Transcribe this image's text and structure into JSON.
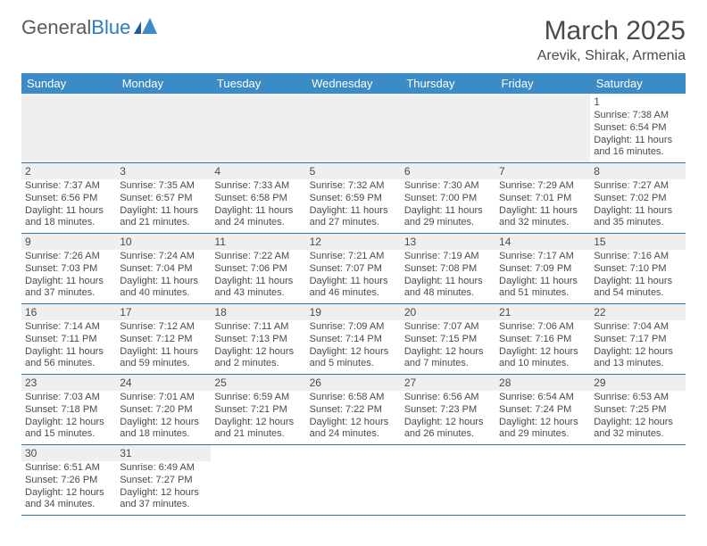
{
  "logo": {
    "text_general": "General",
    "text_blue": "Blue"
  },
  "title": "March 2025",
  "location": "Arevik, Shirak, Armenia",
  "colors": {
    "header_bg": "#3b8bc6",
    "header_text": "#ffffff",
    "row_divider": "#2f74aa",
    "blank_bg": "#efefef",
    "text": "#4a4a4a",
    "logo_blue": "#2b7bbf"
  },
  "typography": {
    "title_fontsize": 30,
    "location_fontsize": 16,
    "header_fontsize": 13,
    "cell_fontsize": 11,
    "daynum_fontsize": 12
  },
  "weekdays": [
    "Sunday",
    "Monday",
    "Tuesday",
    "Wednesday",
    "Thursday",
    "Friday",
    "Saturday"
  ],
  "weeks": [
    [
      null,
      null,
      null,
      null,
      null,
      null,
      {
        "n": "1",
        "sunrise": "Sunrise: 7:38 AM",
        "sunset": "Sunset: 6:54 PM",
        "daylight": "Daylight: 11 hours and 16 minutes."
      }
    ],
    [
      {
        "n": "2",
        "sunrise": "Sunrise: 7:37 AM",
        "sunset": "Sunset: 6:56 PM",
        "daylight": "Daylight: 11 hours and 18 minutes."
      },
      {
        "n": "3",
        "sunrise": "Sunrise: 7:35 AM",
        "sunset": "Sunset: 6:57 PM",
        "daylight": "Daylight: 11 hours and 21 minutes."
      },
      {
        "n": "4",
        "sunrise": "Sunrise: 7:33 AM",
        "sunset": "Sunset: 6:58 PM",
        "daylight": "Daylight: 11 hours and 24 minutes."
      },
      {
        "n": "5",
        "sunrise": "Sunrise: 7:32 AM",
        "sunset": "Sunset: 6:59 PM",
        "daylight": "Daylight: 11 hours and 27 minutes."
      },
      {
        "n": "6",
        "sunrise": "Sunrise: 7:30 AM",
        "sunset": "Sunset: 7:00 PM",
        "daylight": "Daylight: 11 hours and 29 minutes."
      },
      {
        "n": "7",
        "sunrise": "Sunrise: 7:29 AM",
        "sunset": "Sunset: 7:01 PM",
        "daylight": "Daylight: 11 hours and 32 minutes."
      },
      {
        "n": "8",
        "sunrise": "Sunrise: 7:27 AM",
        "sunset": "Sunset: 7:02 PM",
        "daylight": "Daylight: 11 hours and 35 minutes."
      }
    ],
    [
      {
        "n": "9",
        "sunrise": "Sunrise: 7:26 AM",
        "sunset": "Sunset: 7:03 PM",
        "daylight": "Daylight: 11 hours and 37 minutes."
      },
      {
        "n": "10",
        "sunrise": "Sunrise: 7:24 AM",
        "sunset": "Sunset: 7:04 PM",
        "daylight": "Daylight: 11 hours and 40 minutes."
      },
      {
        "n": "11",
        "sunrise": "Sunrise: 7:22 AM",
        "sunset": "Sunset: 7:06 PM",
        "daylight": "Daylight: 11 hours and 43 minutes."
      },
      {
        "n": "12",
        "sunrise": "Sunrise: 7:21 AM",
        "sunset": "Sunset: 7:07 PM",
        "daylight": "Daylight: 11 hours and 46 minutes."
      },
      {
        "n": "13",
        "sunrise": "Sunrise: 7:19 AM",
        "sunset": "Sunset: 7:08 PM",
        "daylight": "Daylight: 11 hours and 48 minutes."
      },
      {
        "n": "14",
        "sunrise": "Sunrise: 7:17 AM",
        "sunset": "Sunset: 7:09 PM",
        "daylight": "Daylight: 11 hours and 51 minutes."
      },
      {
        "n": "15",
        "sunrise": "Sunrise: 7:16 AM",
        "sunset": "Sunset: 7:10 PM",
        "daylight": "Daylight: 11 hours and 54 minutes."
      }
    ],
    [
      {
        "n": "16",
        "sunrise": "Sunrise: 7:14 AM",
        "sunset": "Sunset: 7:11 PM",
        "daylight": "Daylight: 11 hours and 56 minutes."
      },
      {
        "n": "17",
        "sunrise": "Sunrise: 7:12 AM",
        "sunset": "Sunset: 7:12 PM",
        "daylight": "Daylight: 11 hours and 59 minutes."
      },
      {
        "n": "18",
        "sunrise": "Sunrise: 7:11 AM",
        "sunset": "Sunset: 7:13 PM",
        "daylight": "Daylight: 12 hours and 2 minutes."
      },
      {
        "n": "19",
        "sunrise": "Sunrise: 7:09 AM",
        "sunset": "Sunset: 7:14 PM",
        "daylight": "Daylight: 12 hours and 5 minutes."
      },
      {
        "n": "20",
        "sunrise": "Sunrise: 7:07 AM",
        "sunset": "Sunset: 7:15 PM",
        "daylight": "Daylight: 12 hours and 7 minutes."
      },
      {
        "n": "21",
        "sunrise": "Sunrise: 7:06 AM",
        "sunset": "Sunset: 7:16 PM",
        "daylight": "Daylight: 12 hours and 10 minutes."
      },
      {
        "n": "22",
        "sunrise": "Sunrise: 7:04 AM",
        "sunset": "Sunset: 7:17 PM",
        "daylight": "Daylight: 12 hours and 13 minutes."
      }
    ],
    [
      {
        "n": "23",
        "sunrise": "Sunrise: 7:03 AM",
        "sunset": "Sunset: 7:18 PM",
        "daylight": "Daylight: 12 hours and 15 minutes."
      },
      {
        "n": "24",
        "sunrise": "Sunrise: 7:01 AM",
        "sunset": "Sunset: 7:20 PM",
        "daylight": "Daylight: 12 hours and 18 minutes."
      },
      {
        "n": "25",
        "sunrise": "Sunrise: 6:59 AM",
        "sunset": "Sunset: 7:21 PM",
        "daylight": "Daylight: 12 hours and 21 minutes."
      },
      {
        "n": "26",
        "sunrise": "Sunrise: 6:58 AM",
        "sunset": "Sunset: 7:22 PM",
        "daylight": "Daylight: 12 hours and 24 minutes."
      },
      {
        "n": "27",
        "sunrise": "Sunrise: 6:56 AM",
        "sunset": "Sunset: 7:23 PM",
        "daylight": "Daylight: 12 hours and 26 minutes."
      },
      {
        "n": "28",
        "sunrise": "Sunrise: 6:54 AM",
        "sunset": "Sunset: 7:24 PM",
        "daylight": "Daylight: 12 hours and 29 minutes."
      },
      {
        "n": "29",
        "sunrise": "Sunrise: 6:53 AM",
        "sunset": "Sunset: 7:25 PM",
        "daylight": "Daylight: 12 hours and 32 minutes."
      }
    ],
    [
      {
        "n": "30",
        "sunrise": "Sunrise: 6:51 AM",
        "sunset": "Sunset: 7:26 PM",
        "daylight": "Daylight: 12 hours and 34 minutes."
      },
      {
        "n": "31",
        "sunrise": "Sunrise: 6:49 AM",
        "sunset": "Sunset: 7:27 PM",
        "daylight": "Daylight: 12 hours and 37 minutes."
      },
      null,
      null,
      null,
      null,
      null
    ]
  ]
}
